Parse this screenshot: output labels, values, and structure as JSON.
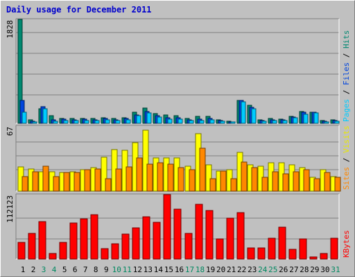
{
  "title": "Daily usage for December 2011",
  "chart_data": [
    {
      "type": "bar",
      "panel": "hits",
      "ymax": 1828,
      "ymax_label": "1828",
      "right_label": [
        {
          "text": "Pages",
          "color": "#00ccff"
        },
        {
          "text": " / ",
          "color": "#000000"
        },
        {
          "text": "Files",
          "color": "#0044dd"
        },
        {
          "text": " / ",
          "color": "#000000"
        },
        {
          "text": "Hits",
          "color": "#008870"
        }
      ],
      "categories": [
        "1",
        "2",
        "3",
        "4",
        "5",
        "6",
        "7",
        "8",
        "9",
        "10",
        "11",
        "12",
        "13",
        "14",
        "15",
        "16",
        "17",
        "18",
        "19",
        "20",
        "21",
        "22",
        "23",
        "24",
        "25",
        "26",
        "27",
        "28",
        "29",
        "30",
        "31"
      ],
      "weekend_days": [
        "3",
        "4",
        "10",
        "11",
        "17",
        "18",
        "24",
        "25",
        "31"
      ],
      "series": [
        {
          "name": "Hits",
          "color": "#008870",
          "values": [
            1828,
            60,
            250,
            140,
            90,
            80,
            90,
            90,
            100,
            80,
            100,
            190,
            270,
            170,
            150,
            140,
            90,
            120,
            120,
            60,
            40,
            400,
            320,
            60,
            80,
            70,
            120,
            210,
            200,
            50,
            60
          ]
        },
        {
          "name": "Files",
          "color": "#0044dd",
          "values": [
            400,
            40,
            290,
            60,
            70,
            60,
            70,
            60,
            80,
            60,
            80,
            150,
            210,
            140,
            100,
            100,
            60,
            70,
            80,
            50,
            30,
            400,
            280,
            50,
            60,
            60,
            110,
            190,
            190,
            40,
            50
          ]
        },
        {
          "name": "Pages",
          "color": "#00ccff",
          "values": [
            190,
            30,
            260,
            40,
            50,
            50,
            50,
            50,
            60,
            50,
            60,
            130,
            180,
            110,
            70,
            70,
            50,
            50,
            60,
            40,
            20,
            380,
            250,
            40,
            50,
            50,
            100,
            160,
            180,
            30,
            40
          ]
        }
      ]
    },
    {
      "type": "bar",
      "panel": "visits",
      "ymax": 67,
      "ymax_label": "67",
      "right_label": [
        {
          "text": "Sites",
          "color": "#ff8800"
        },
        {
          "text": " / ",
          "color": "#000000"
        },
        {
          "text": "Visits",
          "color": "#e8e800"
        }
      ],
      "categories": [
        "1",
        "2",
        "3",
        "4",
        "5",
        "6",
        "7",
        "8",
        "9",
        "10",
        "11",
        "12",
        "13",
        "14",
        "15",
        "16",
        "17",
        "18",
        "19",
        "20",
        "21",
        "22",
        "23",
        "24",
        "25",
        "26",
        "27",
        "28",
        "29",
        "30",
        "31"
      ],
      "series": [
        {
          "name": "Visits",
          "color": "#ffff00",
          "values": [
            25,
            23,
            20,
            20,
            19,
            20,
            22,
            24,
            35,
            43,
            42,
            50,
            63,
            34,
            34,
            34,
            26,
            59,
            27,
            21,
            22,
            40,
            27,
            26,
            29,
            29,
            27,
            24,
            14,
            22,
            15
          ]
        },
        {
          "name": "Sites",
          "color": "#ff8800",
          "values": [
            15,
            20,
            26,
            15,
            19,
            19,
            22,
            23,
            13,
            23,
            25,
            34,
            28,
            29,
            28,
            24,
            22,
            44,
            13,
            21,
            13,
            30,
            24,
            14,
            20,
            18,
            20,
            22,
            13,
            19,
            14
          ]
        }
      ]
    },
    {
      "type": "bar",
      "panel": "kbytes",
      "ymax": 112123,
      "ymax_label": "112123",
      "right_label": [
        {
          "text": "KBytes",
          "color": "#ff0000"
        }
      ],
      "categories": [
        "1",
        "2",
        "3",
        "4",
        "5",
        "6",
        "7",
        "8",
        "9",
        "10",
        "11",
        "12",
        "13",
        "14",
        "15",
        "16",
        "17",
        "18",
        "19",
        "20",
        "21",
        "22",
        "23",
        "24",
        "25",
        "26",
        "27",
        "28",
        "29",
        "30",
        "31"
      ],
      "series": [
        {
          "name": "KBytes",
          "color": "#ff0000",
          "values": [
            29000,
            45000,
            65000,
            10000,
            29000,
            63000,
            70000,
            77000,
            18000,
            26000,
            43000,
            54000,
            74000,
            64000,
            112000,
            87000,
            45000,
            95000,
            84000,
            35000,
            71000,
            81000,
            19000,
            19000,
            36000,
            55000,
            17000,
            35000,
            4000,
            10000,
            36000
          ]
        }
      ]
    }
  ]
}
